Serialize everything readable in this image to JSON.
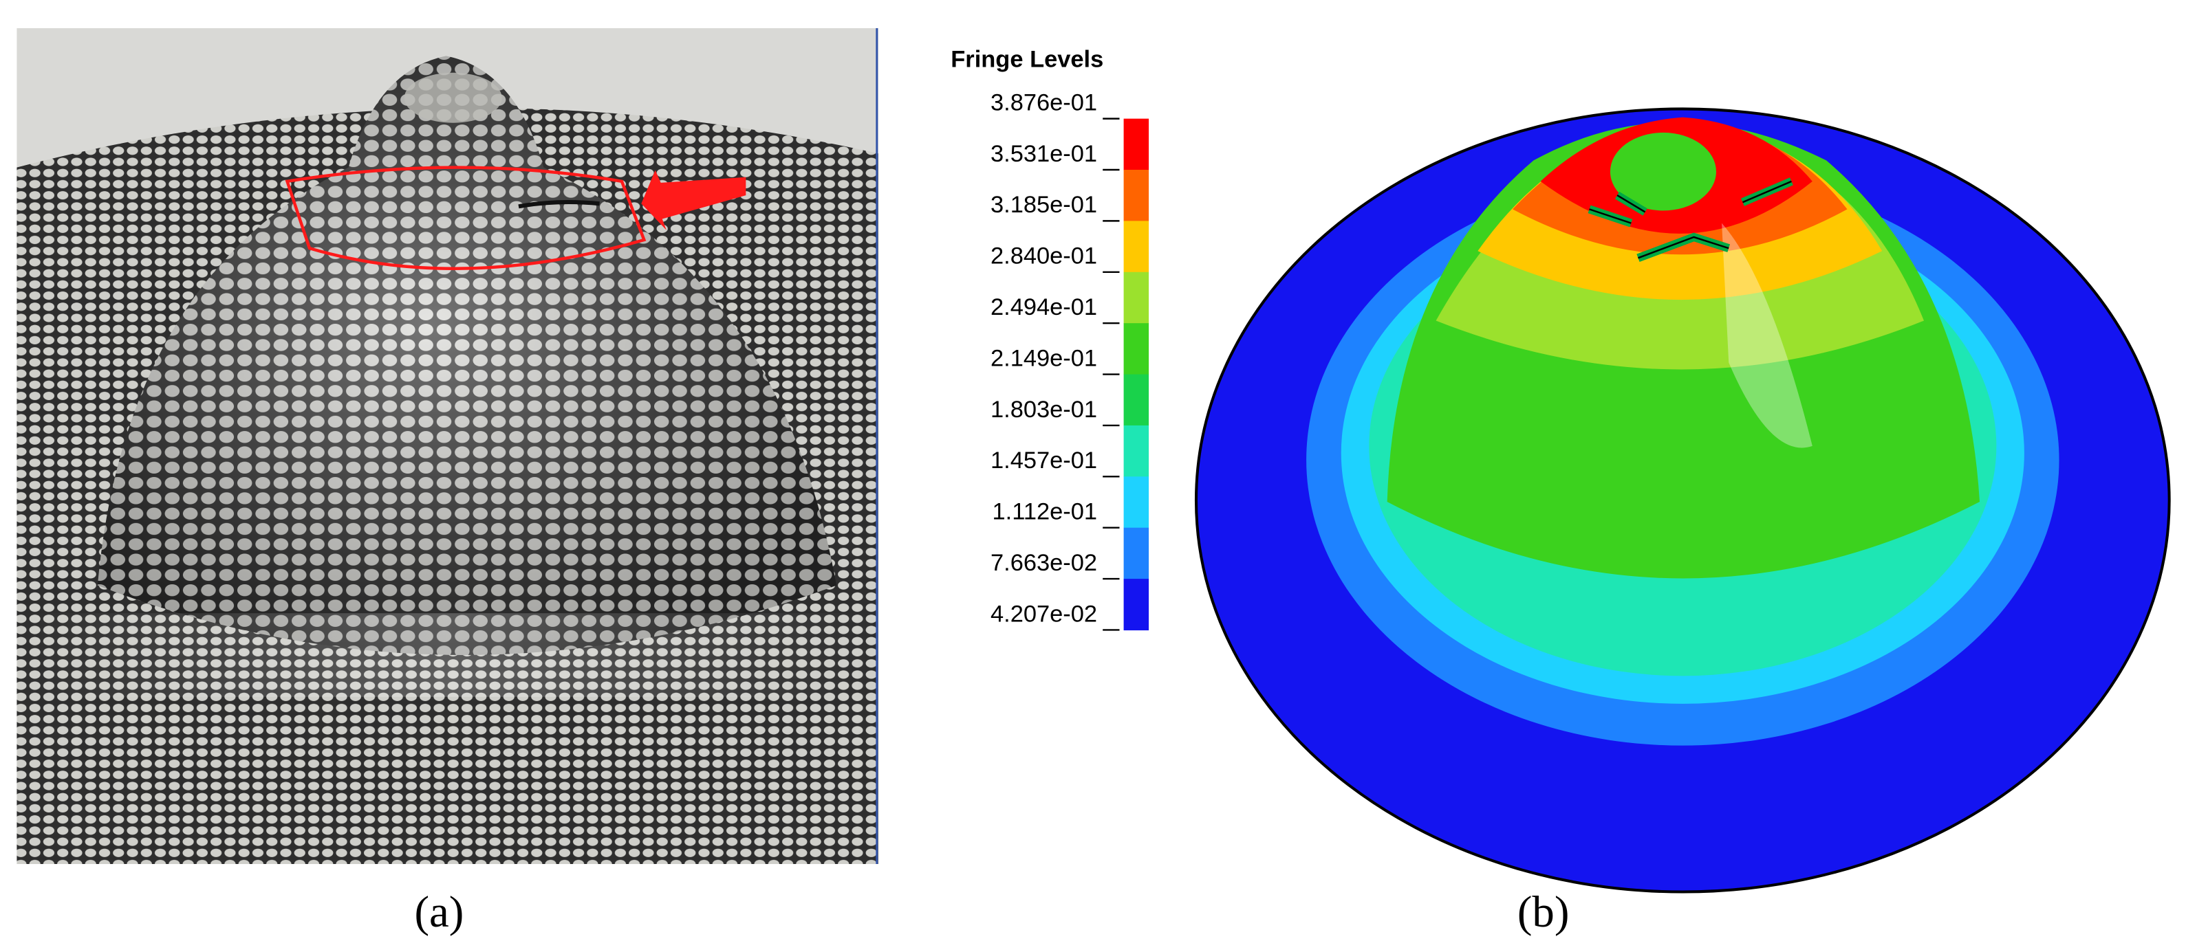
{
  "panel_a": {
    "caption": "(a)"
  },
  "panel_b": {
    "caption": "(b)",
    "legend": {
      "title": "Fringe Levels",
      "levels": [
        "3.876e-01",
        "3.531e-01",
        "3.185e-01",
        "2.840e-01",
        "2.494e-01",
        "2.149e-01",
        "1.803e-01",
        "1.457e-01",
        "1.112e-01",
        "7.663e-02",
        "4.207e-02"
      ],
      "colors": [
        "#ff0000",
        "#ff6400",
        "#ffc800",
        "#9be12d",
        "#3cd21e",
        "#19d24b",
        "#1ee6b4",
        "#1ed2ff",
        "#1e82ff",
        "#1414f0"
      ]
    }
  }
}
